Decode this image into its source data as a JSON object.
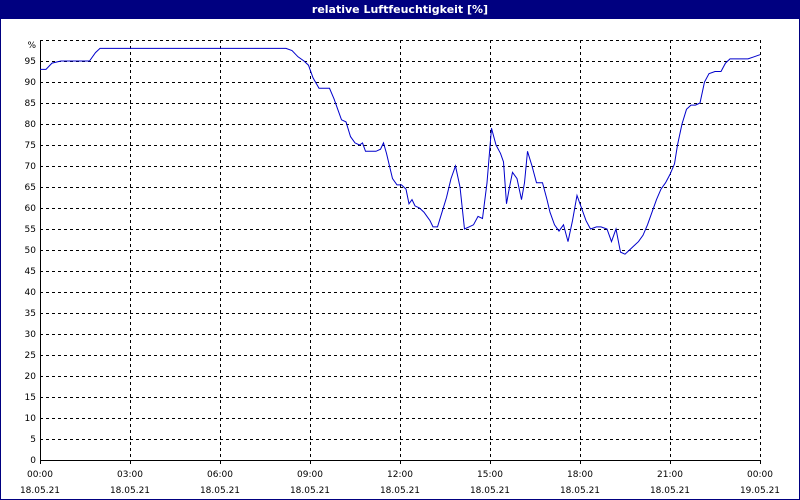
{
  "window": {
    "title": "relative Luftfeuchtigkeit [%]"
  },
  "colors": {
    "title_bar": "#000080",
    "series_line": "#0000cc",
    "grid": "#000000"
  },
  "chart_data": {
    "type": "line",
    "title": "relative Luftfeuchtigkeit [%]",
    "ylabel": "%",
    "ylim": [
      0,
      100
    ],
    "y_ticks": [
      0,
      5,
      10,
      15,
      20,
      25,
      30,
      35,
      40,
      45,
      50,
      55,
      60,
      65,
      70,
      75,
      80,
      85,
      90,
      95
    ],
    "xlim_hours": [
      0,
      24
    ],
    "x_ticks": [
      {
        "hour": 0,
        "time": "00:00",
        "date": "18.05.21"
      },
      {
        "hour": 3,
        "time": "03:00",
        "date": "18.05.21"
      },
      {
        "hour": 6,
        "time": "06:00",
        "date": "18.05.21"
      },
      {
        "hour": 9,
        "time": "09:00",
        "date": "18.05.21"
      },
      {
        "hour": 12,
        "time": "12:00",
        "date": "18.05.21"
      },
      {
        "hour": 15,
        "time": "15:00",
        "date": "18.05.21"
      },
      {
        "hour": 18,
        "time": "18:00",
        "date": "18.05.21"
      },
      {
        "hour": 21,
        "time": "21:00",
        "date": "18.05.21"
      },
      {
        "hour": 24,
        "time": "00:00",
        "date": "19.05.21"
      }
    ],
    "grid": true,
    "series": [
      {
        "points": [
          [
            0.0,
            93
          ],
          [
            0.2,
            93
          ],
          [
            0.4,
            94.5
          ],
          [
            0.7,
            95
          ],
          [
            1.0,
            95
          ],
          [
            1.5,
            95
          ],
          [
            1.65,
            95
          ],
          [
            1.85,
            97
          ],
          [
            2.0,
            98
          ],
          [
            2.5,
            98
          ],
          [
            3.0,
            98
          ],
          [
            5.0,
            98
          ],
          [
            7.0,
            98
          ],
          [
            8.2,
            98
          ],
          [
            8.4,
            97.5
          ],
          [
            8.6,
            96
          ],
          [
            8.8,
            95
          ],
          [
            8.95,
            94
          ],
          [
            9.1,
            91
          ],
          [
            9.3,
            88.5
          ],
          [
            9.65,
            88.5
          ],
          [
            9.8,
            86
          ],
          [
            9.95,
            83
          ],
          [
            10.05,
            81
          ],
          [
            10.2,
            80.5
          ],
          [
            10.35,
            77
          ],
          [
            10.5,
            75.5
          ],
          [
            10.65,
            75
          ],
          [
            10.75,
            75.5
          ],
          [
            10.85,
            73.5
          ],
          [
            11.05,
            73.5
          ],
          [
            11.2,
            73.5
          ],
          [
            11.35,
            74
          ],
          [
            11.45,
            75.5
          ],
          [
            11.55,
            73
          ],
          [
            11.65,
            70
          ],
          [
            11.75,
            67
          ],
          [
            11.9,
            65.5
          ],
          [
            12.05,
            65.5
          ],
          [
            12.2,
            64.5
          ],
          [
            12.3,
            61
          ],
          [
            12.4,
            62
          ],
          [
            12.5,
            60.5
          ],
          [
            12.65,
            60
          ],
          [
            12.8,
            59
          ],
          [
            12.9,
            58
          ],
          [
            13.0,
            57
          ],
          [
            13.1,
            55.5
          ],
          [
            13.25,
            55.5
          ],
          [
            13.4,
            59
          ],
          [
            13.55,
            62.5
          ],
          [
            13.7,
            67
          ],
          [
            13.85,
            70
          ],
          [
            14.0,
            65
          ],
          [
            14.15,
            55
          ],
          [
            14.3,
            55.5
          ],
          [
            14.45,
            56
          ],
          [
            14.6,
            58
          ],
          [
            14.75,
            57.5
          ],
          [
            14.9,
            66
          ],
          [
            15.05,
            79
          ],
          [
            15.2,
            75
          ],
          [
            15.35,
            73
          ],
          [
            15.45,
            71
          ],
          [
            15.55,
            61
          ],
          [
            15.65,
            65
          ],
          [
            15.75,
            68.5
          ],
          [
            15.9,
            67
          ],
          [
            16.05,
            62
          ],
          [
            16.15,
            66
          ],
          [
            16.25,
            73.5
          ],
          [
            16.4,
            70
          ],
          [
            16.55,
            66
          ],
          [
            16.75,
            66
          ],
          [
            16.9,
            62
          ],
          [
            17.0,
            59
          ],
          [
            17.15,
            56
          ],
          [
            17.3,
            54.5
          ],
          [
            17.45,
            56
          ],
          [
            17.6,
            52
          ],
          [
            17.75,
            57
          ],
          [
            17.9,
            63
          ],
          [
            18.05,
            60
          ],
          [
            18.2,
            57
          ],
          [
            18.35,
            55
          ],
          [
            18.55,
            55.5
          ],
          [
            18.7,
            55.5
          ],
          [
            18.9,
            55
          ],
          [
            19.05,
            52
          ],
          [
            19.2,
            55
          ],
          [
            19.35,
            49.5
          ],
          [
            19.5,
            49
          ],
          [
            19.65,
            50
          ],
          [
            19.8,
            51
          ],
          [
            19.95,
            52
          ],
          [
            20.1,
            53.5
          ],
          [
            20.25,
            56
          ],
          [
            20.4,
            59
          ],
          [
            20.55,
            62
          ],
          [
            20.7,
            64.5
          ],
          [
            20.85,
            66
          ],
          [
            21.0,
            68
          ],
          [
            21.15,
            70.5
          ],
          [
            21.25,
            75
          ],
          [
            21.4,
            80
          ],
          [
            21.55,
            83.5
          ],
          [
            21.7,
            84.5
          ],
          [
            21.85,
            84.5
          ],
          [
            22.0,
            85
          ],
          [
            22.15,
            90
          ],
          [
            22.3,
            92
          ],
          [
            22.5,
            92.5
          ],
          [
            22.7,
            92.5
          ],
          [
            22.85,
            94.5
          ],
          [
            23.0,
            95.5
          ],
          [
            23.3,
            95.5
          ],
          [
            23.6,
            95.5
          ],
          [
            23.8,
            96
          ],
          [
            24.0,
            96.5
          ]
        ]
      }
    ]
  }
}
